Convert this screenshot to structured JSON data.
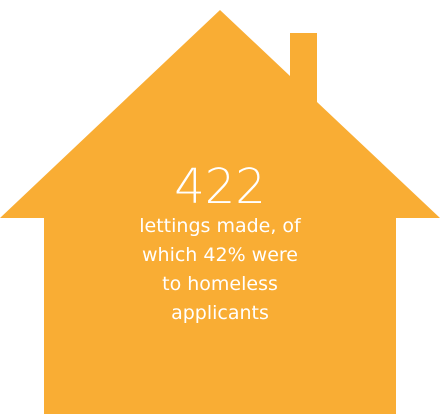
{
  "colors": {
    "house_fill": "#F9AD34",
    "text": "#FFFFFF",
    "background": "#FFFFFF"
  },
  "icon": "house-icon",
  "stat": {
    "number": "422",
    "caption_lines": [
      "lettings made, of",
      "which 42% were",
      "to homeless",
      "applicants"
    ]
  }
}
